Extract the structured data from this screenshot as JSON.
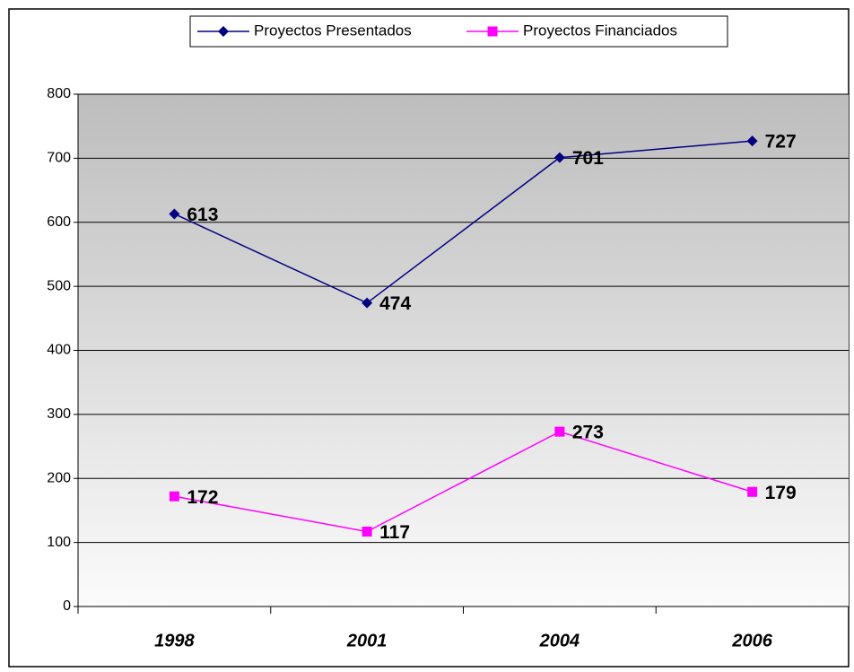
{
  "chart_data": {
    "type": "line",
    "categories": [
      "1998",
      "2001",
      "2004",
      "2006"
    ],
    "series": [
      {
        "name": "Proyectos Presentados",
        "color": "#000080",
        "values": [
          613,
          474,
          701,
          727
        ]
      },
      {
        "name": "Proyectos Financiados",
        "color": "#ff00ff",
        "values": [
          172,
          117,
          273,
          179
        ]
      }
    ],
    "ylim": [
      0,
      800
    ],
    "yticks": [
      0,
      100,
      200,
      300,
      400,
      500,
      600,
      700,
      800
    ],
    "grid": true,
    "legend": "top"
  }
}
